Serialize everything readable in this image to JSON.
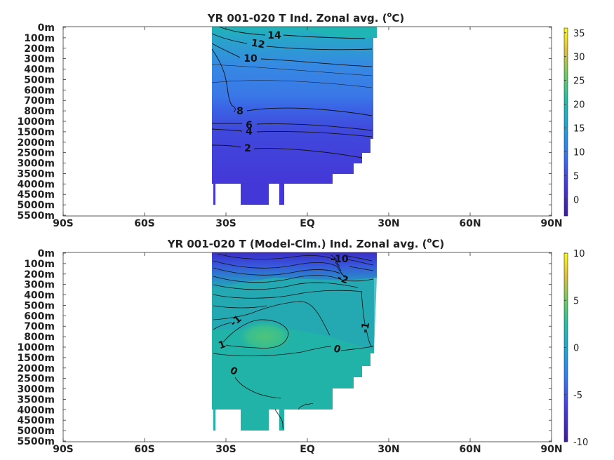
{
  "chart_data": [
    {
      "type": "heatmap",
      "title": "YR 001-020 T Ind. Zonal avg.",
      "title_unit_o": "o",
      "title_unit_c": "C)",
      "x_ticks": [
        "90S",
        "60S",
        "30S",
        "EQ",
        "30N",
        "60N",
        "90N"
      ],
      "y_ticks": [
        "0m",
        "100m",
        "200m",
        "300m",
        "400m",
        "500m",
        "600m",
        "700m",
        "800m",
        "1000m",
        "1500m",
        "2000m",
        "2500m",
        "3000m",
        "3500m",
        "4000m",
        "4500m",
        "5000m",
        "5500m"
      ],
      "xlim": [
        -90,
        90
      ],
      "colorbar": {
        "ticks": [
          "35",
          "30",
          "25",
          "20",
          "15",
          "10",
          "5",
          "0"
        ],
        "range": [
          -3.5,
          36
        ]
      },
      "contour_labels": [
        "14",
        "12",
        "10",
        "8",
        "6",
        "4",
        "2"
      ],
      "colors": {
        "deep": "#4437d8",
        "mid": "#3a74e6",
        "shallow": "#1fb0b8",
        "contour": "#111111"
      }
    },
    {
      "type": "heatmap",
      "title": "YR 001-020 T (Model-Clm.) Ind. Zonal avg.",
      "title_unit_o": "o",
      "title_unit_c": "C)",
      "x_ticks": [
        "90S",
        "60S",
        "30S",
        "EQ",
        "30N",
        "60N",
        "90N"
      ],
      "y_ticks": [
        "0m",
        "100m",
        "200m",
        "300m",
        "400m",
        "500m",
        "600m",
        "700m",
        "800m",
        "1000m",
        "1500m",
        "2000m",
        "2500m",
        "3000m",
        "3500m",
        "4000m",
        "4500m",
        "5000m",
        "5500m"
      ],
      "xlim": [
        -90,
        90
      ],
      "colorbar": {
        "ticks": [
          "10",
          "5",
          "0",
          "-5",
          "-10"
        ],
        "range": [
          -10,
          10
        ]
      },
      "contour_labels": [
        "-1",
        "1",
        "0",
        "0",
        "-1",
        "-2",
        "-10"
      ],
      "colors": {
        "base": "#20b4a4",
        "warm": "#3cc48c",
        "cold": "#3a2ec8",
        "contour": "#111111"
      }
    }
  ]
}
